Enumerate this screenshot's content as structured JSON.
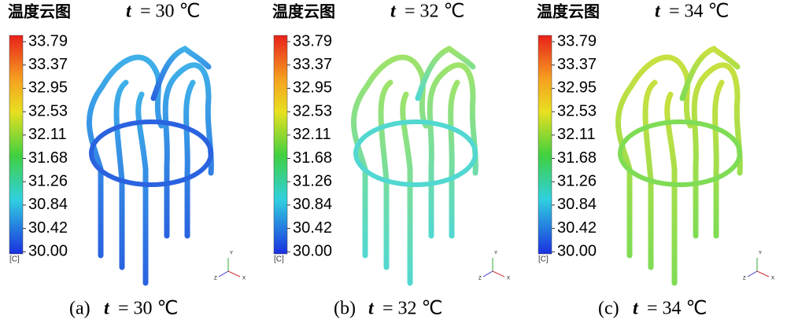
{
  "panels": [
    {
      "title": "温度云图",
      "variable": "t",
      "condition": "= 30 ℃",
      "colorbar_ticks": [
        "33.79",
        "33.37",
        "32.95",
        "32.53",
        "32.11",
        "31.68",
        "31.26",
        "30.84",
        "30.42",
        "30.00"
      ],
      "unit": "[C]",
      "triad_labels": [
        "Y",
        "Z",
        "X"
      ],
      "caption_label": "(a)",
      "caption_variable": "t",
      "caption_condition": "= 30 ℃",
      "tint": [
        "#2a63e0",
        "#3fb0e8"
      ]
    },
    {
      "title": "温度云图",
      "variable": "t",
      "condition": "= 32 ℃",
      "colorbar_ticks": [
        "33.79",
        "33.37",
        "32.95",
        "32.53",
        "32.11",
        "31.68",
        "31.26",
        "30.84",
        "30.42",
        "30.00"
      ],
      "unit": "[C]",
      "triad_labels": [
        "Y",
        "Z",
        "X"
      ],
      "caption_label": "(b)",
      "caption_variable": "t",
      "caption_condition": "= 32 ℃",
      "tint": [
        "#52d8d0",
        "#9ee36a"
      ]
    },
    {
      "title": "温度云图",
      "variable": "t",
      "condition": "= 34 ℃",
      "colorbar_ticks": [
        "33.79",
        "33.37",
        "32.95",
        "32.53",
        "32.11",
        "31.68",
        "31.26",
        "30.84",
        "30.42",
        "30.00"
      ],
      "unit": "[C]",
      "triad_labels": [
        "Y",
        "Z",
        "X"
      ],
      "caption_label": "(c)",
      "caption_variable": "t",
      "caption_condition": "= 34 ℃",
      "tint": [
        "#7fdc55",
        "#c8e040"
      ]
    }
  ]
}
